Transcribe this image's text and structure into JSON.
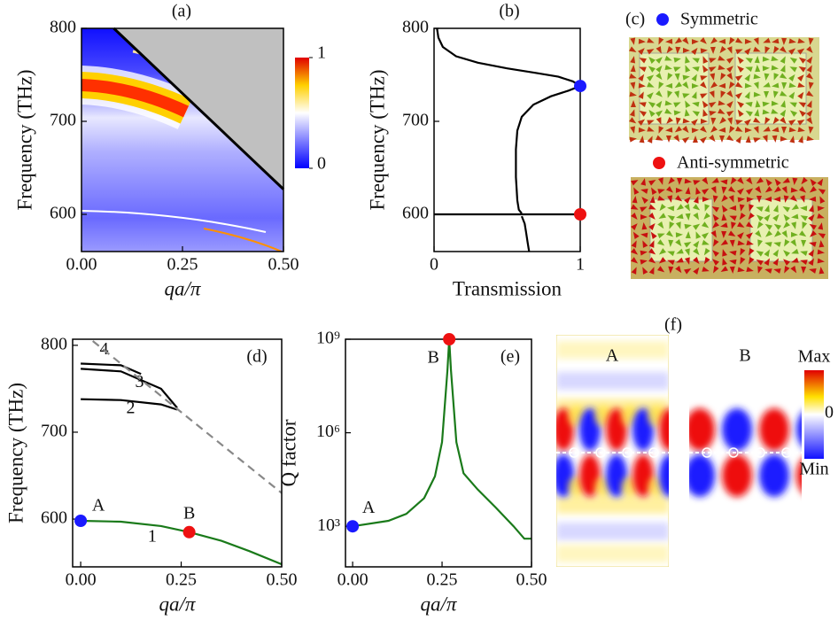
{
  "chart_data": [
    {
      "type": "heatmap",
      "title": "(a)",
      "x_label": "qa/π",
      "y_label": "Frequency (THz)",
      "xlim": [
        0,
        0.5
      ],
      "ylim": [
        560,
        800
      ],
      "xticks": [
        {
          "value": 0,
          "label": "0.00"
        },
        {
          "value": 0.25,
          "label": "0.25"
        },
        {
          "value": 0.5,
          "label": "0.50"
        }
      ],
      "yticks": [
        600,
        700,
        800
      ],
      "clim": [
        0,
        1
      ],
      "cticks": [
        0,
        1
      ],
      "light_line": {
        "x": [
          0.08,
          0.5
        ],
        "values": [
          800,
          627
        ],
        "color": "#000000"
      },
      "region_color": "#c0c0c0"
    },
    {
      "type": "line",
      "title": "(b)",
      "x_label": "Transmission",
      "y_label": "Frequency (THz)",
      "xlim": [
        0,
        1
      ],
      "ylim": [
        560,
        800
      ],
      "xticks": [
        0,
        1
      ],
      "yticks": [
        600,
        700,
        800
      ],
      "series": [
        {
          "color": "#000000",
          "x": [
            0.02,
            0.03,
            0.06,
            0.15,
            0.3,
            0.5,
            0.7,
            0.85,
            0.95,
            1.0,
            0.92,
            0.8,
            0.68,
            0.6,
            0.57,
            0.56,
            0.56,
            0.57,
            0.58,
            0.6
          ],
          "values": [
            800,
            790,
            780,
            770,
            763,
            757,
            752,
            748,
            743,
            738,
            733,
            727,
            718,
            705,
            690,
            670,
            640,
            615,
            605,
            601
          ]
        },
        {
          "color": "#000000",
          "x": [
            0,
            1
          ],
          "values": [
            600,
            600
          ]
        },
        {
          "color": "#000000",
          "x": [
            0.6,
            0.62,
            0.63,
            0.64,
            0.65
          ],
          "values": [
            598,
            590,
            580,
            570,
            560
          ]
        }
      ],
      "points": [
        {
          "x": 1,
          "y": 738,
          "color": "#1a1aff"
        },
        {
          "x": 1,
          "y": 600,
          "color": "#ee1111"
        }
      ]
    },
    {
      "type": "image",
      "title": "(c)",
      "labels": [
        {
          "text": "Symmetric",
          "color": "#1a1aff"
        },
        {
          "text": "Anti-symmetric",
          "color": "#ee1111"
        }
      ]
    },
    {
      "type": "line",
      "title": "(d)",
      "x_label": "qa/π",
      "y_label": "Frequency (THz)",
      "xlim": [
        -0.02,
        0.5
      ],
      "ylim": [
        545,
        807
      ],
      "xticks": [
        {
          "value": 0,
          "label": "0.00"
        },
        {
          "value": 0.25,
          "label": "0.25"
        },
        {
          "value": 0.5,
          "label": "0.50"
        }
      ],
      "yticks": [
        600,
        700,
        800
      ],
      "series": [
        {
          "name": "1",
          "color": "#1a7a1a",
          "x": [
            0,
            0.1,
            0.2,
            0.27,
            0.35,
            0.42,
            0.5
          ],
          "values": [
            598,
            597,
            592,
            585,
            575,
            563,
            548
          ]
        },
        {
          "name": "2",
          "color": "#000000",
          "x": [
            0,
            0.1,
            0.2,
            0.24
          ],
          "values": [
            738,
            737,
            732,
            726
          ]
        },
        {
          "name": "3",
          "color": "#000000",
          "x": [
            0,
            0.1,
            0.2,
            0.24
          ],
          "values": [
            773,
            770,
            750,
            728
          ]
        },
        {
          "name": "4",
          "color": "#000000",
          "x": [
            0,
            0.1,
            0.15
          ],
          "values": [
            779,
            777,
            767
          ]
        },
        {
          "color": "#888888",
          "style": "dashed",
          "x": [
            0.03,
            0.5
          ],
          "values": [
            805,
            630
          ]
        }
      ],
      "points": [
        {
          "label": "A",
          "x": 0,
          "y": 598,
          "color": "#1a1aff"
        },
        {
          "label": "B",
          "x": 0.27,
          "y": 585,
          "color": "#ee1111"
        }
      ]
    },
    {
      "type": "line",
      "title": "(e)",
      "x_label": "qa/π",
      "y_label": "Q factor",
      "ylog": true,
      "xlim": [
        -0.02,
        0.5
      ],
      "ylim": [
        50,
        1000000000
      ],
      "xticks": [
        {
          "value": 0,
          "label": "0.00"
        },
        {
          "value": 0.25,
          "label": "0.25"
        },
        {
          "value": 0.5,
          "label": "0.50"
        }
      ],
      "yticks": [
        {
          "value": 1000,
          "label": "10³"
        },
        {
          "value": 1000000,
          "label": "10⁶"
        },
        {
          "value": 1000000000,
          "label": "10⁹"
        }
      ],
      "series": [
        {
          "color": "#1a7a1a",
          "x": [
            0,
            0.1,
            0.15,
            0.2,
            0.23,
            0.25,
            0.265,
            0.27,
            0.275,
            0.29,
            0.31,
            0.35,
            0.4,
            0.45,
            0.48,
            0.5
          ],
          "values": [
            1000,
            1500,
            2500,
            8000,
            40000,
            500000,
            100000000,
            1000000000,
            100000000,
            500000,
            50000,
            15000,
            4000,
            1000,
            400,
            400
          ]
        }
      ],
      "points": [
        {
          "label": "A",
          "x": 0,
          "y": 1000,
          "color": "#1a1aff"
        },
        {
          "label": "B",
          "x": 0.27,
          "y": 1000000000,
          "color": "#ee1111"
        }
      ]
    },
    {
      "type": "image",
      "title": "(f)",
      "labels": [
        {
          "text": "A",
          "color": "#1a1aff"
        },
        {
          "text": "B",
          "color": "#ee1111"
        }
      ],
      "colorbar_labels": [
        "Max",
        "0",
        "Min"
      ]
    }
  ]
}
